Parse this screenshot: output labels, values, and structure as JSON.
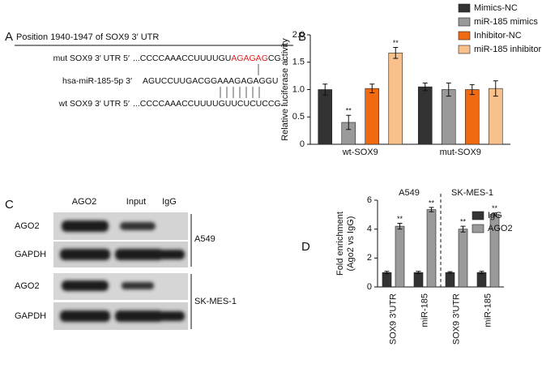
{
  "panel_labels": [
    "A",
    "B",
    "C",
    "D"
  ],
  "panel_a": {
    "title": "Position 1940-1947 of SOX9 3′ UTR",
    "mut": {
      "label": "mut SOX9 3′ UTR 5′",
      "seq_start": "...CCCCAAACCUUUUGU",
      "seq_site": "AGAGAG",
      "seq_end": "CG..."
    },
    "mirna": {
      "label": "hsa-miR-185-5p 3′",
      "seq": "AGUCCUUGACGGAAAGAGAGGU"
    },
    "wt": {
      "label": "wt SOX9 3′ UTR 5′",
      "seq": "...CCCCAAACCUUUUGUUCUCUCCG..."
    }
  },
  "chart_data": [
    {
      "type": "bar",
      "y_label": "Relative luciferase activity",
      "categories": [
        "wt-SOX9",
        "mut-SOX9"
      ],
      "series": [
        {
          "name": "Mimics-NC",
          "color": "#333333",
          "values": [
            1.0,
            1.05
          ],
          "errors": [
            0.1,
            0.07
          ],
          "significance": [
            null,
            null
          ]
        },
        {
          "name": "miR-185 mimics",
          "color": "#9a9a9a",
          "values": [
            0.4,
            1.0
          ],
          "errors": [
            0.13,
            0.12
          ],
          "significance": [
            "**",
            null
          ]
        },
        {
          "name": "Inhibitor-NC",
          "color": "#f26a10",
          "values": [
            1.02,
            1.0
          ],
          "errors": [
            0.08,
            0.09
          ],
          "significance": [
            null,
            null
          ]
        },
        {
          "name": "miR-185 inhibitor",
          "color": "#f8c08a",
          "values": [
            1.67,
            1.02
          ],
          "errors": [
            0.1,
            0.14
          ],
          "significance": [
            "**",
            null
          ]
        }
      ],
      "ylim": [
        0,
        2.0
      ],
      "yticks": [
        0,
        0.5,
        {
          "value": 1.0,
          "label": "1.0"
        },
        1.5,
        {
          "value": 2.0,
          "label": "2.0"
        }
      ]
    },
    {
      "type": "bar",
      "y_label": [
        "Fold enrichment",
        "(Ago2 vs IgG)"
      ],
      "group_labels": [
        "A549",
        "SK-MES-1"
      ],
      "categories": [
        "SOX9 3′UTR",
        "miR-185",
        "SOX9 3′UTR",
        "miR-185"
      ],
      "series": [
        {
          "name": "IgG",
          "color": "#333333",
          "values": [
            1,
            1,
            1,
            1
          ],
          "errors": [
            0.08,
            0.08,
            0.06,
            0.08
          ],
          "significance": [
            null,
            null,
            null,
            null
          ]
        },
        {
          "name": "AGO2",
          "color": "#9a9a9a",
          "values": [
            4.2,
            5.35,
            4.0,
            5.02
          ],
          "errors": [
            0.2,
            0.15,
            0.2,
            0.1
          ],
          "significance": [
            "**",
            "**",
            "**",
            "**"
          ]
        }
      ],
      "ylim": [
        0,
        6
      ],
      "yticks": [
        0,
        2,
        4,
        6
      ]
    }
  ],
  "panel_c": {
    "columns": [
      "AGO2",
      "Input",
      "IgG"
    ],
    "groups": [
      {
        "name": "A549",
        "rows": [
          "AGO2",
          "GAPDH"
        ]
      },
      {
        "name": "SK-MES-1",
        "rows": [
          "AGO2",
          "GAPDH"
        ]
      }
    ]
  }
}
